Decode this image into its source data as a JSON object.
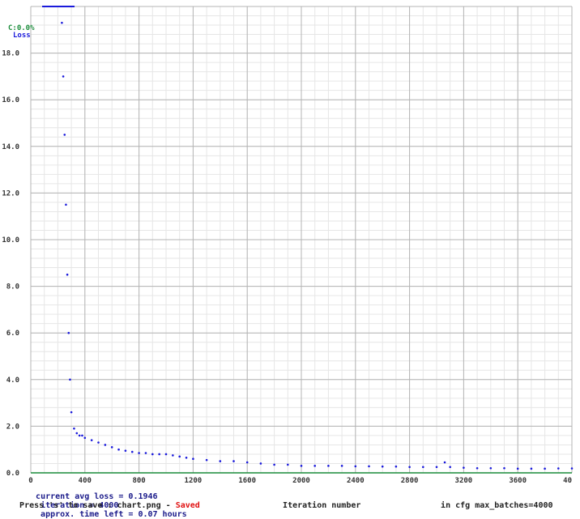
{
  "chart_data": {
    "type": "scatter",
    "title": "",
    "xlabel": "Iteration number",
    "ylabel": "",
    "xlim": [
      0,
      4000
    ],
    "ylim": [
      0,
      20
    ],
    "x_ticks": [
      "0",
      "400",
      "800",
      "1200",
      "1600",
      "2000",
      "2400",
      "2800",
      "3200",
      "3600",
      "40"
    ],
    "y_ticks": [
      "0.0",
      "2.0",
      "4.0",
      "6.0",
      "8.0",
      "10.0",
      "12.0",
      "14.0",
      "16.0",
      "18.0"
    ],
    "grid": true,
    "legend": [
      {
        "label": "C:0.0%",
        "color": "#1a8c3a"
      },
      {
        "label": "Loss",
        "color": "#1a1adb"
      }
    ],
    "series": [
      {
        "name": "Loss",
        "color": "#1a1adb",
        "x": [
          230,
          240,
          250,
          260,
          270,
          280,
          290,
          300,
          320,
          340,
          360,
          380,
          400,
          450,
          500,
          550,
          600,
          650,
          700,
          750,
          800,
          850,
          900,
          950,
          1000,
          1050,
          1100,
          1150,
          1200,
          1300,
          1400,
          1500,
          1600,
          1700,
          1800,
          1900,
          2000,
          2100,
          2200,
          2300,
          2400,
          2500,
          2600,
          2700,
          2800,
          2900,
          3000,
          3060,
          3100,
          3200,
          3300,
          3400,
          3500,
          3600,
          3700,
          3800,
          3900,
          4000
        ],
        "y": [
          19.3,
          17.0,
          14.5,
          11.5,
          8.5,
          6.0,
          4.0,
          2.6,
          1.9,
          1.7,
          1.6,
          1.6,
          1.5,
          1.4,
          1.3,
          1.2,
          1.1,
          1.0,
          0.95,
          0.9,
          0.85,
          0.85,
          0.8,
          0.8,
          0.8,
          0.75,
          0.7,
          0.65,
          0.6,
          0.55,
          0.5,
          0.5,
          0.45,
          0.4,
          0.35,
          0.35,
          0.3,
          0.3,
          0.3,
          0.3,
          0.28,
          0.28,
          0.27,
          0.27,
          0.25,
          0.25,
          0.25,
          0.45,
          0.25,
          0.22,
          0.2,
          0.2,
          0.2,
          0.18,
          0.18,
          0.18,
          0.19,
          0.19
        ]
      }
    ]
  },
  "status": {
    "line1_loss": "current avg loss = 0.1946",
    "line1_iter": "iteration = 4000",
    "line1_time": "approx. time left = 0.07 hours",
    "line2_press": "Press 's' to save : chart.png - ",
    "line2_saved": "Saved",
    "line2_label": "Iteration number",
    "line2_cfg": "in cfg max_batches=4000"
  }
}
